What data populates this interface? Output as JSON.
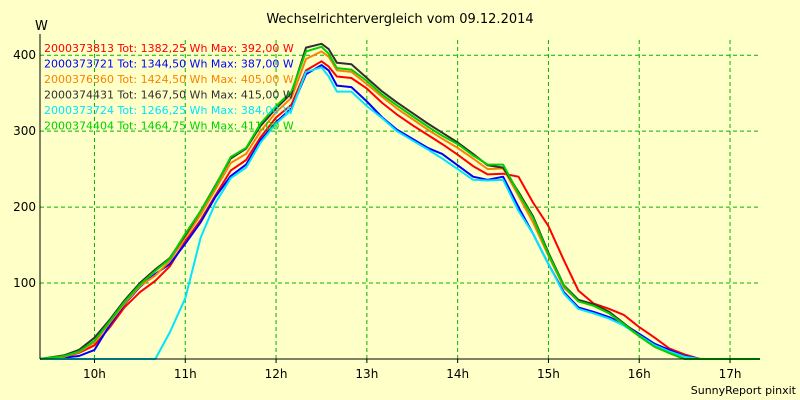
{
  "chart_data": {
    "type": "line",
    "title": "Wechselrichtervergleich vom 09.12.2014",
    "ylabel": "W",
    "xlabel": "",
    "footer": "SunnyReport pinxit",
    "grid": true,
    "legend_position": "top-left",
    "ylim": [
      0,
      420
    ],
    "yticks": [
      100,
      200,
      300,
      400
    ],
    "xlim": [
      9.4,
      17.33
    ],
    "xticks": [
      10,
      11,
      12,
      13,
      14,
      15,
      16,
      17
    ],
    "xtick_labels": [
      "10h",
      "11h",
      "12h",
      "13h",
      "14h",
      "15h",
      "16h",
      "17h"
    ],
    "x": [
      9.4,
      9.67,
      9.83,
      10.0,
      10.17,
      10.33,
      10.5,
      10.67,
      10.83,
      11.0,
      11.17,
      11.33,
      11.5,
      11.67,
      11.83,
      12.0,
      12.17,
      12.33,
      12.5,
      12.58,
      12.67,
      12.83,
      13.0,
      13.17,
      13.33,
      13.5,
      13.67,
      13.83,
      14.0,
      14.17,
      14.33,
      14.5,
      14.67,
      14.83,
      15.0,
      15.17,
      15.33,
      15.5,
      15.67,
      15.83,
      16.0,
      16.17,
      16.33,
      16.5,
      16.67,
      16.83,
      17.0,
      17.17,
      17.33
    ],
    "series": [
      {
        "name": "2000373813  Tot: 1382,25 Wh Max: 392,00 W",
        "color": "#ff0000",
        "values": [
          0,
          3,
          8,
          18,
          42,
          68,
          88,
          103,
          122,
          155,
          183,
          215,
          248,
          262,
          292,
          318,
          335,
          380,
          392,
          385,
          372,
          370,
          356,
          337,
          322,
          308,
          295,
          283,
          269,
          254,
          243,
          244,
          240,
          206,
          175,
          130,
          90,
          73,
          66,
          58,
          42,
          28,
          14,
          6,
          0,
          0,
          0,
          0,
          0
        ]
      },
      {
        "name": "2000373721  Tot: 1344,50 Wh Max: 387,00 W",
        "color": "#0000ff",
        "values": [
          0,
          2,
          4,
          12,
          45,
          72,
          95,
          112,
          125,
          152,
          180,
          213,
          241,
          256,
          288,
          312,
          330,
          375,
          387,
          380,
          360,
          358,
          339,
          318,
          302,
          290,
          278,
          270,
          255,
          240,
          236,
          240,
          200,
          165,
          125,
          88,
          68,
          62,
          55,
          46,
          33,
          20,
          12,
          4,
          0,
          0,
          0,
          0,
          0
        ]
      },
      {
        "name": "2000376360  Tot: 1424,50 Wh Max: 405,00 W",
        "color": "#ff8000",
        "values": [
          0,
          3,
          9,
          22,
          48,
          73,
          96,
          110,
          129,
          160,
          190,
          223,
          258,
          270,
          300,
          325,
          344,
          395,
          405,
          398,
          380,
          378,
          362,
          345,
          330,
          316,
          302,
          290,
          278,
          264,
          250,
          251,
          215,
          180,
          136,
          94,
          76,
          70,
          60,
          45,
          30,
          16,
          8,
          0,
          0,
          0,
          0,
          0,
          0
        ]
      },
      {
        "name": "2000374431  Tot: 1467,50 Wh Max: 415,00 W",
        "color": "#303030",
        "values": [
          0,
          5,
          12,
          28,
          52,
          77,
          100,
          118,
          133,
          163,
          195,
          228,
          264,
          277,
          307,
          330,
          350,
          410,
          415,
          408,
          390,
          388,
          370,
          352,
          338,
          324,
          310,
          298,
          285,
          270,
          255,
          252,
          220,
          188,
          140,
          97,
          78,
          72,
          62,
          47,
          31,
          17,
          8,
          0,
          0,
          0,
          0,
          0,
          0
        ]
      },
      {
        "name": "2000373724  Tot: 1266,25 Wh Max: 384,00 W",
        "color": "#00e5ff",
        "values": [
          0,
          0,
          0,
          0,
          0,
          0,
          0,
          0,
          35,
          80,
          160,
          205,
          238,
          252,
          285,
          310,
          328,
          378,
          384,
          372,
          352,
          352,
          333,
          317,
          300,
          288,
          276,
          264,
          250,
          236,
          235,
          236,
          195,
          165,
          125,
          86,
          66,
          60,
          53,
          44,
          31,
          18,
          10,
          3,
          0,
          0,
          0,
          0,
          0
        ]
      },
      {
        "name": "2000374404  Tot: 1464,75 Wh Max: 411,00 W",
        "color": "#00d000",
        "values": [
          0,
          4,
          10,
          24,
          50,
          75,
          98,
          116,
          132,
          165,
          195,
          227,
          266,
          278,
          310,
          333,
          352,
          405,
          411,
          402,
          383,
          381,
          366,
          348,
          334,
          320,
          306,
          294,
          283,
          268,
          256,
          256,
          218,
          186,
          138,
          96,
          76,
          70,
          60,
          46,
          30,
          16,
          8,
          0,
          0,
          0,
          0,
          0,
          0
        ]
      }
    ]
  }
}
